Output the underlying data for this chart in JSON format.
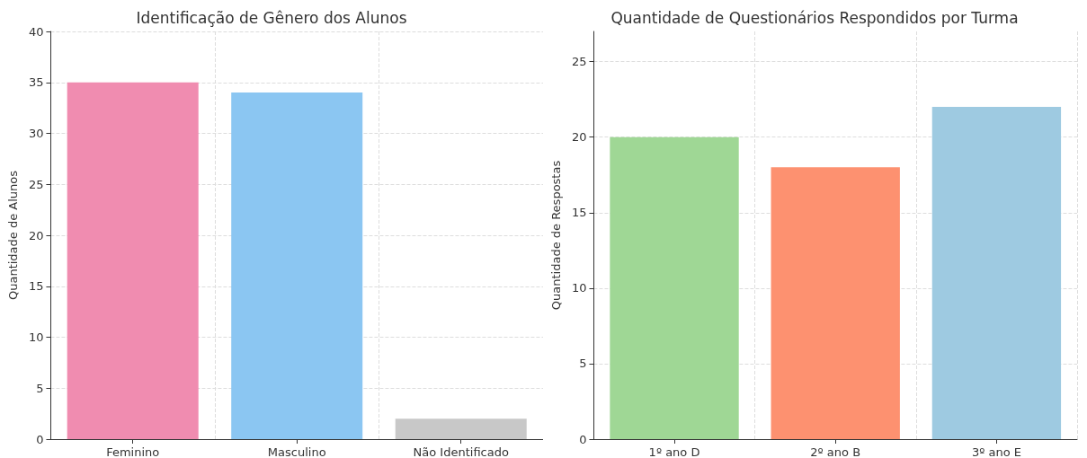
{
  "chart_data": [
    {
      "type": "bar",
      "title": "Identificação de Gênero dos Alunos",
      "ylabel": "Quantidade de Alunos",
      "categories": [
        "Feminino",
        "Masculino",
        "Não Identificado"
      ],
      "values": [
        35,
        34,
        2
      ],
      "colors": [
        "#f08cb0",
        "#8bc6f2",
        "#c8c8c8"
      ],
      "ylim": [
        0,
        40
      ],
      "yticks": [
        0,
        5,
        10,
        15,
        20,
        25,
        30,
        35,
        40
      ],
      "grid": true
    },
    {
      "type": "bar",
      "title": "Quantidade de Questionários Respondidos por Turma",
      "ylabel": "Quantidade de Respostas",
      "categories": [
        "1º ano D",
        "2º ano B",
        "3º ano E"
      ],
      "values": [
        20,
        18,
        22
      ],
      "colors": [
        "#9fd795",
        "#fd9170",
        "#9ecae1"
      ],
      "ylim": [
        0,
        27
      ],
      "yticks": [
        0,
        5,
        10,
        15,
        20,
        25
      ],
      "grid": true
    }
  ]
}
